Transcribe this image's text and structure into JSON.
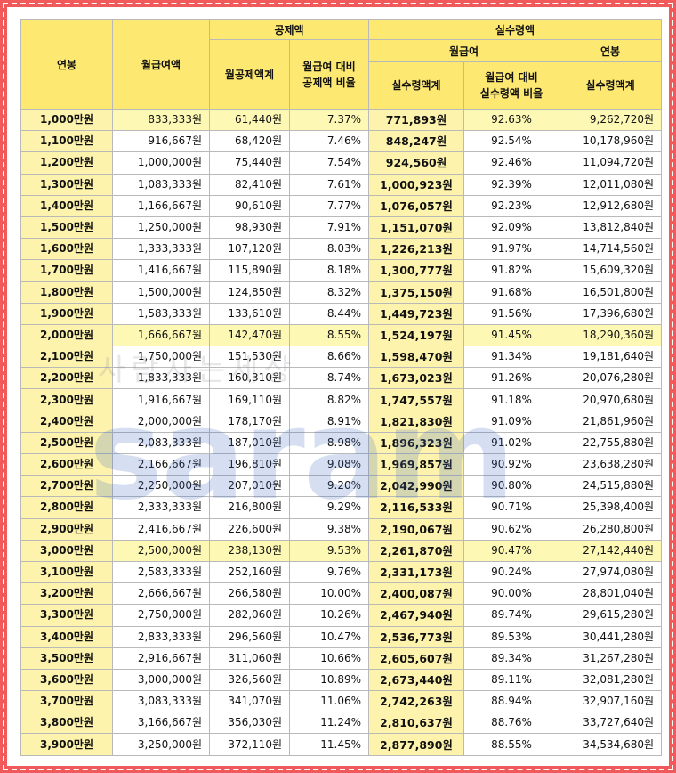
{
  "header": {
    "salary": "연봉",
    "monthly_gross": "월급여액",
    "deduction_group": "공제액",
    "net_group": "실수령액",
    "monthly_deduction_total": "월공제액계",
    "deduction_ratio": "월급여 대비\n공제액 비율",
    "monthly_sub": "월급여",
    "annual_sub": "연봉",
    "monthly_net_total": "실수령액계",
    "net_ratio": "월급여 대비\n실수령액 비율",
    "annual_net_total": "실수령액계"
  },
  "rows": [
    {
      "salary": "1,000만원",
      "gross": "833,333원",
      "deduct": "61,440원",
      "dratio": "7.37%",
      "net": "771,893원",
      "nratio": "92.63%",
      "annual": "9,262,720원",
      "hl": true
    },
    {
      "salary": "1,100만원",
      "gross": "916,667원",
      "deduct": "68,420원",
      "dratio": "7.46%",
      "net": "848,247원",
      "nratio": "92.54%",
      "annual": "10,178,960원",
      "hl": false
    },
    {
      "salary": "1,200만원",
      "gross": "1,000,000원",
      "deduct": "75,440원",
      "dratio": "7.54%",
      "net": "924,560원",
      "nratio": "92.46%",
      "annual": "11,094,720원",
      "hl": false
    },
    {
      "salary": "1,300만원",
      "gross": "1,083,333원",
      "deduct": "82,410원",
      "dratio": "7.61%",
      "net": "1,000,923원",
      "nratio": "92.39%",
      "annual": "12,011,080원",
      "hl": false
    },
    {
      "salary": "1,400만원",
      "gross": "1,166,667원",
      "deduct": "90,610원",
      "dratio": "7.77%",
      "net": "1,076,057원",
      "nratio": "92.23%",
      "annual": "12,912,680원",
      "hl": false
    },
    {
      "salary": "1,500만원",
      "gross": "1,250,000원",
      "deduct": "98,930원",
      "dratio": "7.91%",
      "net": "1,151,070원",
      "nratio": "92.09%",
      "annual": "13,812,840원",
      "hl": false
    },
    {
      "salary": "1,600만원",
      "gross": "1,333,333원",
      "deduct": "107,120원",
      "dratio": "8.03%",
      "net": "1,226,213원",
      "nratio": "91.97%",
      "annual": "14,714,560원",
      "hl": false
    },
    {
      "salary": "1,700만원",
      "gross": "1,416,667원",
      "deduct": "115,890원",
      "dratio": "8.18%",
      "net": "1,300,777원",
      "nratio": "91.82%",
      "annual": "15,609,320원",
      "hl": false
    },
    {
      "salary": "1,800만원",
      "gross": "1,500,000원",
      "deduct": "124,850원",
      "dratio": "8.32%",
      "net": "1,375,150원",
      "nratio": "91.68%",
      "annual": "16,501,800원",
      "hl": false
    },
    {
      "salary": "1,900만원",
      "gross": "1,583,333원",
      "deduct": "133,610원",
      "dratio": "8.44%",
      "net": "1,449,723원",
      "nratio": "91.56%",
      "annual": "17,396,680원",
      "hl": false
    },
    {
      "salary": "2,000만원",
      "gross": "1,666,667원",
      "deduct": "142,470원",
      "dratio": "8.55%",
      "net": "1,524,197원",
      "nratio": "91.45%",
      "annual": "18,290,360원",
      "hl": true
    },
    {
      "salary": "2,100만원",
      "gross": "1,750,000원",
      "deduct": "151,530원",
      "dratio": "8.66%",
      "net": "1,598,470원",
      "nratio": "91.34%",
      "annual": "19,181,640원",
      "hl": false
    },
    {
      "salary": "2,200만원",
      "gross": "1,833,333원",
      "deduct": "160,310원",
      "dratio": "8.74%",
      "net": "1,673,023원",
      "nratio": "91.26%",
      "annual": "20,076,280원",
      "hl": false
    },
    {
      "salary": "2,300만원",
      "gross": "1,916,667원",
      "deduct": "169,110원",
      "dratio": "8.82%",
      "net": "1,747,557원",
      "nratio": "91.18%",
      "annual": "20,970,680원",
      "hl": false
    },
    {
      "salary": "2,400만원",
      "gross": "2,000,000원",
      "deduct": "178,170원",
      "dratio": "8.91%",
      "net": "1,821,830원",
      "nratio": "91.09%",
      "annual": "21,861,960원",
      "hl": false
    },
    {
      "salary": "2,500만원",
      "gross": "2,083,333원",
      "deduct": "187,010원",
      "dratio": "8.98%",
      "net": "1,896,323원",
      "nratio": "91.02%",
      "annual": "22,755,880원",
      "hl": false
    },
    {
      "salary": "2,600만원",
      "gross": "2,166,667원",
      "deduct": "196,810원",
      "dratio": "9.08%",
      "net": "1,969,857원",
      "nratio": "90.92%",
      "annual": "23,638,280원",
      "hl": false
    },
    {
      "salary": "2,700만원",
      "gross": "2,250,000원",
      "deduct": "207,010원",
      "dratio": "9.20%",
      "net": "2,042,990원",
      "nratio": "90.80%",
      "annual": "24,515,880원",
      "hl": false
    },
    {
      "salary": "2,800만원",
      "gross": "2,333,333원",
      "deduct": "216,800원",
      "dratio": "9.29%",
      "net": "2,116,533원",
      "nratio": "90.71%",
      "annual": "25,398,400원",
      "hl": false
    },
    {
      "salary": "2,900만원",
      "gross": "2,416,667원",
      "deduct": "226,600원",
      "dratio": "9.38%",
      "net": "2,190,067원",
      "nratio": "90.62%",
      "annual": "26,280,800원",
      "hl": false
    },
    {
      "salary": "3,000만원",
      "gross": "2,500,000원",
      "deduct": "238,130원",
      "dratio": "9.53%",
      "net": "2,261,870원",
      "nratio": "90.47%",
      "annual": "27,142,440원",
      "hl": true
    },
    {
      "salary": "3,100만원",
      "gross": "2,583,333원",
      "deduct": "252,160원",
      "dratio": "9.76%",
      "net": "2,331,173원",
      "nratio": "90.24%",
      "annual": "27,974,080원",
      "hl": false
    },
    {
      "salary": "3,200만원",
      "gross": "2,666,667원",
      "deduct": "266,580원",
      "dratio": "10.00%",
      "net": "2,400,087원",
      "nratio": "90.00%",
      "annual": "28,801,040원",
      "hl": false
    },
    {
      "salary": "3,300만원",
      "gross": "2,750,000원",
      "deduct": "282,060원",
      "dratio": "10.26%",
      "net": "2,467,940원",
      "nratio": "89.74%",
      "annual": "29,615,280원",
      "hl": false
    },
    {
      "salary": "3,400만원",
      "gross": "2,833,333원",
      "deduct": "296,560원",
      "dratio": "10.47%",
      "net": "2,536,773원",
      "nratio": "89.53%",
      "annual": "30,441,280원",
      "hl": false
    },
    {
      "salary": "3,500만원",
      "gross": "2,916,667원",
      "deduct": "311,060원",
      "dratio": "10.66%",
      "net": "2,605,607원",
      "nratio": "89.34%",
      "annual": "31,267,280원",
      "hl": false
    },
    {
      "salary": "3,600만원",
      "gross": "3,000,000원",
      "deduct": "326,560원",
      "dratio": "10.89%",
      "net": "2,673,440원",
      "nratio": "89.11%",
      "annual": "32,081,280원",
      "hl": false
    },
    {
      "salary": "3,700만원",
      "gross": "3,083,333원",
      "deduct": "341,070원",
      "dratio": "11.06%",
      "net": "2,742,263원",
      "nratio": "88.94%",
      "annual": "32,907,160원",
      "hl": false
    },
    {
      "salary": "3,800만원",
      "gross": "3,166,667원",
      "deduct": "356,030원",
      "dratio": "11.24%",
      "net": "2,810,637원",
      "nratio": "88.76%",
      "annual": "33,727,640원",
      "hl": false
    },
    {
      "salary": "3,900만원",
      "gross": "3,250,000원",
      "deduct": "372,110원",
      "dratio": "11.45%",
      "net": "2,877,890원",
      "nratio": "88.55%",
      "annual": "34,534,680원",
      "hl": false
    }
  ],
  "watermark": {
    "main": "saram",
    "sub": "사람사는세상"
  },
  "colors": {
    "header_bg": "#fde872",
    "highlight_bg": "#fdf8b4",
    "border_red": "#f15a5a"
  }
}
